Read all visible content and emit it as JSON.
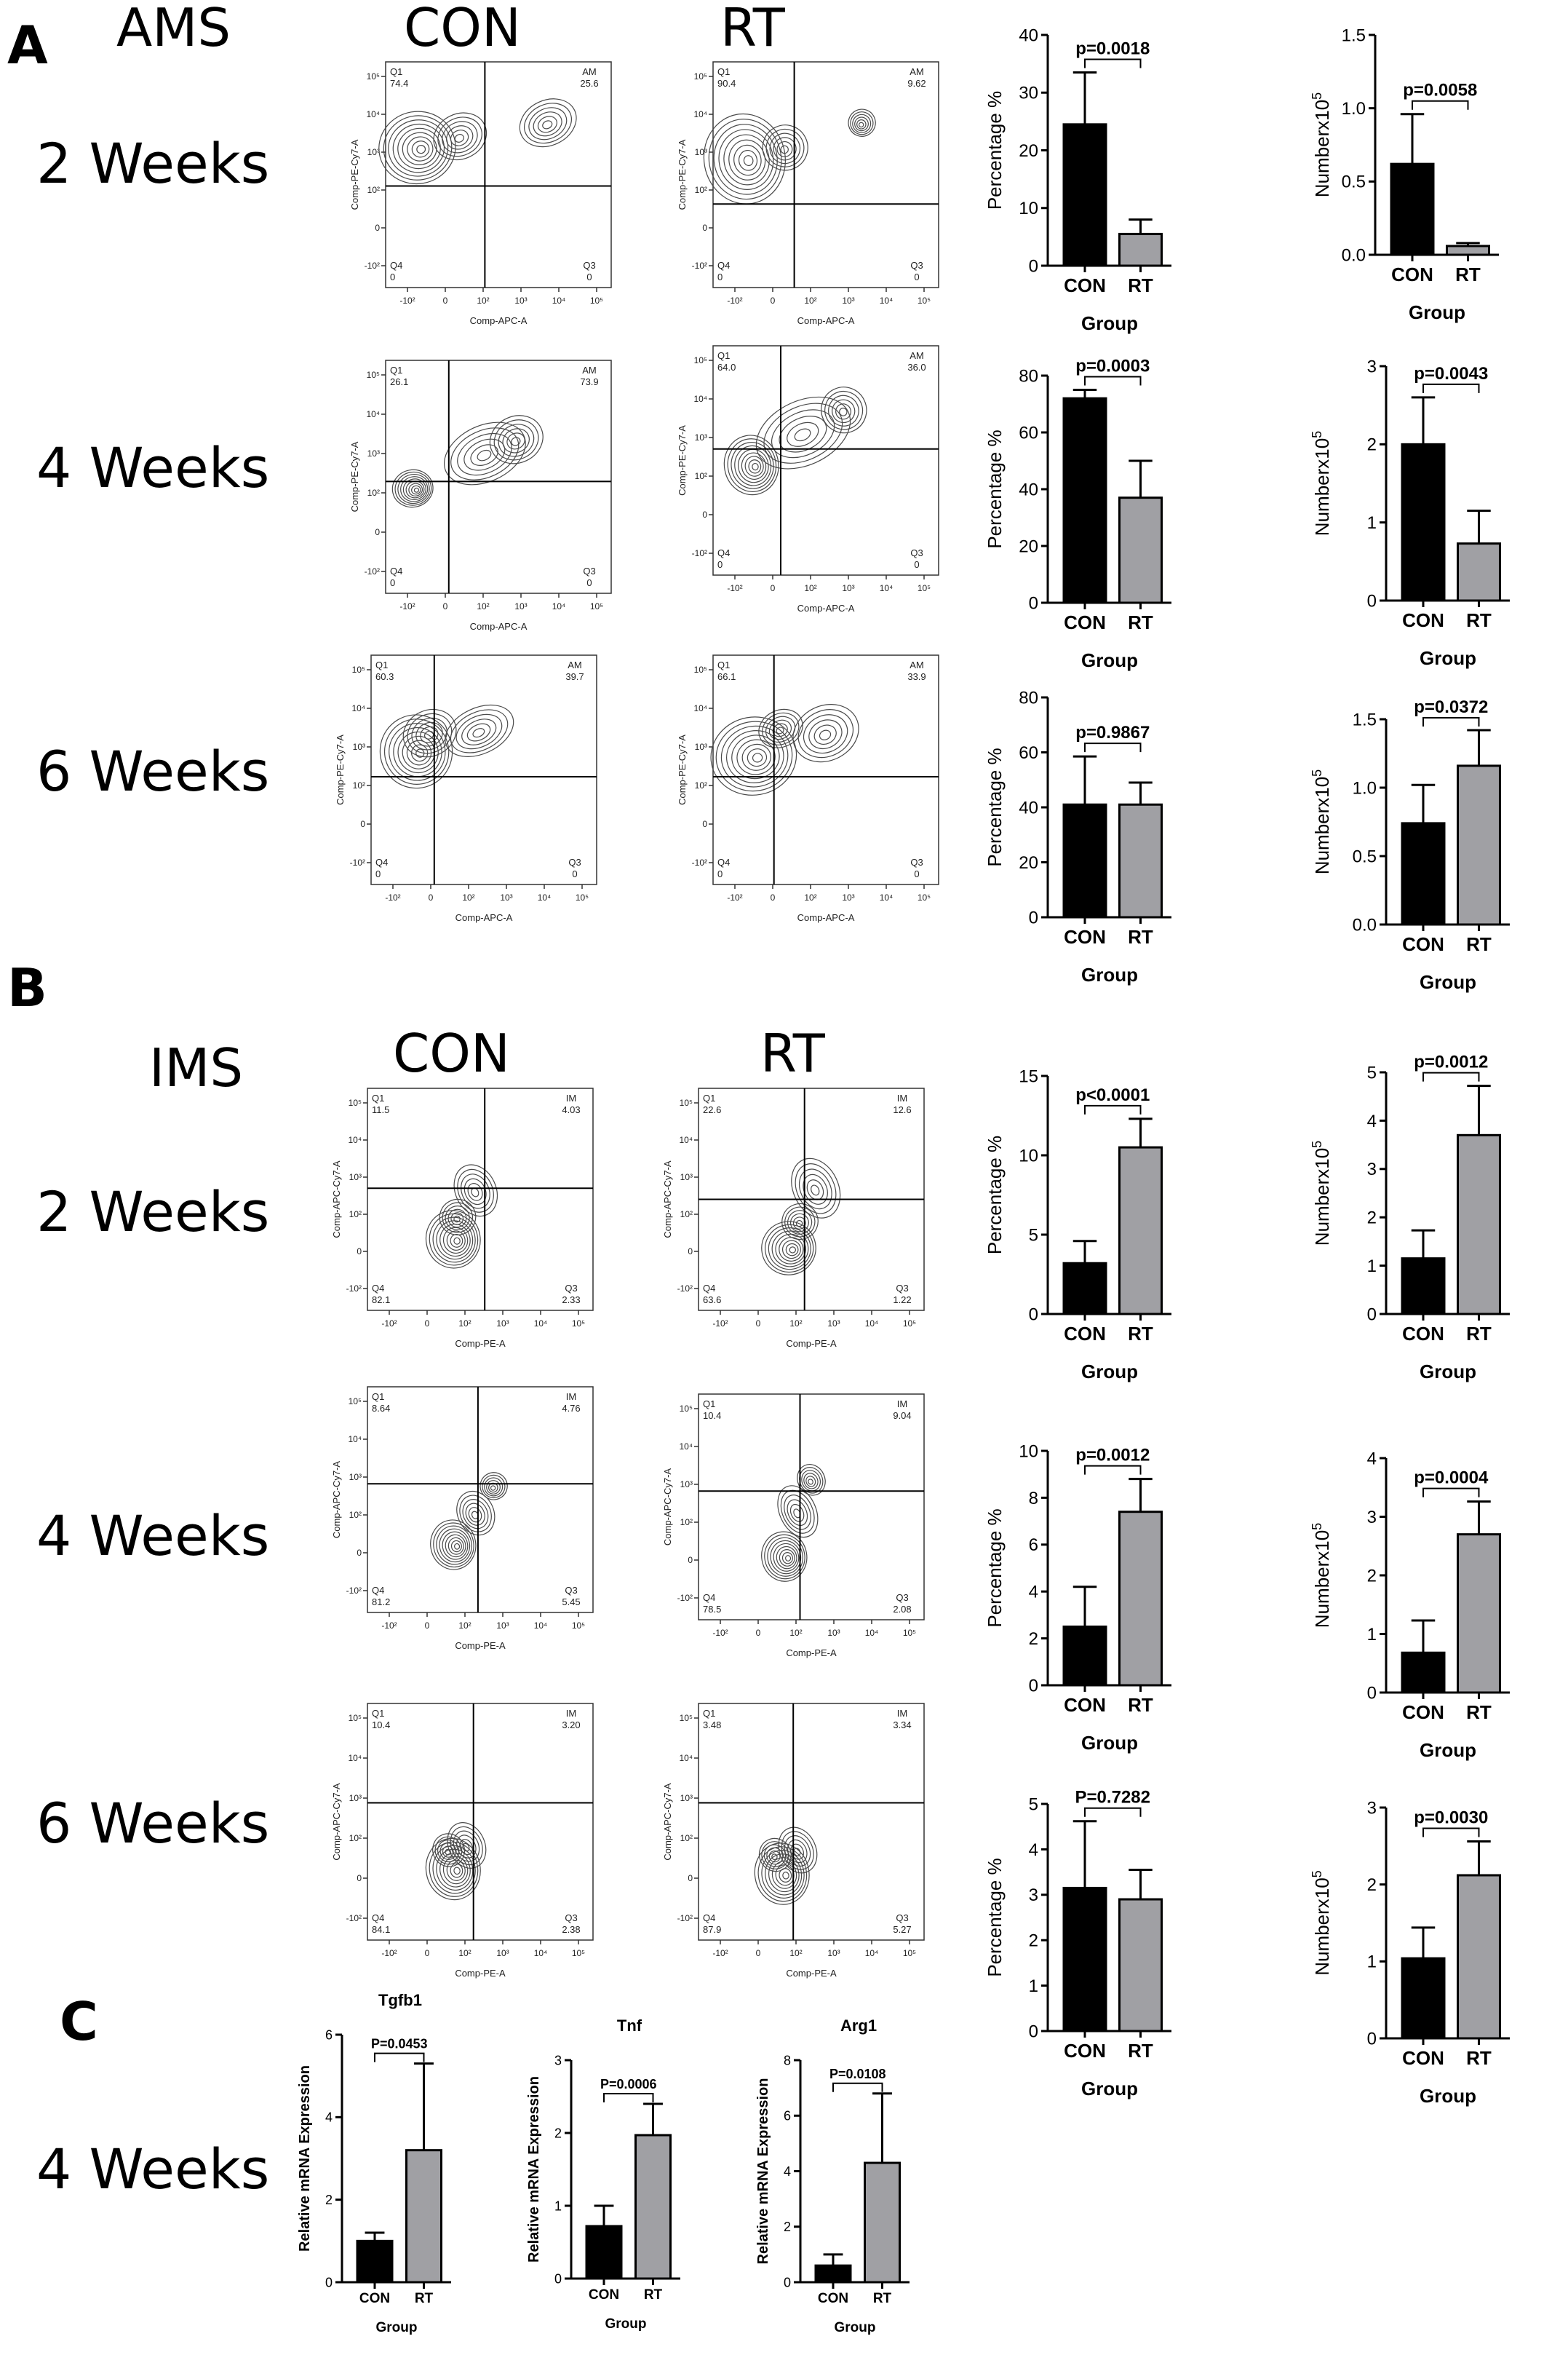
{
  "panels": {
    "a": "A",
    "b": "B",
    "c": "C"
  },
  "headers": {
    "ams": "AMS",
    "ims": "IMS",
    "con": "CON",
    "rt": "RT"
  },
  "rows": {
    "w2": "2 Weeks",
    "w4": "4 Weeks",
    "w6": "6 Weeks"
  },
  "flow_axes": {
    "ams_x": "Comp-APC-A",
    "ams_y": "Comp-PE-Cy7-A",
    "ims_x": "Comp-PE-A",
    "ims_y": "Comp-APC-Cy7-A",
    "ticks": [
      "-10²",
      "0",
      "10²",
      "10³",
      "10⁴",
      "10⁵"
    ]
  },
  "flow_plots": [
    {
      "panel": "AMS",
      "week": "2 Weeks",
      "group": "CON",
      "quadrants": {
        "q1": "Q1",
        "q1_value": "74.4",
        "upper_right": "AM",
        "upper_right_value": "25.6",
        "q4": "Q4",
        "q4_value": "0",
        "q3": "Q3",
        "q3_value": "0"
      }
    },
    {
      "panel": "AMS",
      "week": "2 Weeks",
      "group": "RT",
      "quadrants": {
        "q1": "Q1",
        "q1_value": "90.4",
        "upper_right": "AM",
        "upper_right_value": "9.62",
        "q4": "Q4",
        "q4_value": "0",
        "q3": "Q3",
        "q3_value": "0"
      }
    },
    {
      "panel": "AMS",
      "week": "4 Weeks",
      "group": "CON",
      "quadrants": {
        "q1": "Q1",
        "q1_value": "26.1",
        "upper_right": "AM",
        "upper_right_value": "73.9",
        "q4": "Q4",
        "q4_value": "0",
        "q3": "Q3",
        "q3_value": "0"
      }
    },
    {
      "panel": "AMS",
      "week": "4 Weeks",
      "group": "RT",
      "quadrants": {
        "q1": "Q1",
        "q1_value": "64.0",
        "upper_right": "AM",
        "upper_right_value": "36.0",
        "q4": "Q4",
        "q4_value": "0",
        "q3": "Q3",
        "q3_value": "0"
      }
    },
    {
      "panel": "AMS",
      "week": "6 Weeks",
      "group": "CON",
      "quadrants": {
        "q1": "Q1",
        "q1_value": "60.3",
        "upper_right": "AM",
        "upper_right_value": "39.7",
        "q4": "Q4",
        "q4_value": "0",
        "q3": "Q3",
        "q3_value": "0"
      }
    },
    {
      "panel": "AMS",
      "week": "6 Weeks",
      "group": "RT",
      "quadrants": {
        "q1": "Q1",
        "q1_value": "66.1",
        "upper_right": "AM",
        "upper_right_value": "33.9",
        "q4": "Q4",
        "q4_value": "0",
        "q3": "Q3",
        "q3_value": "0"
      }
    },
    {
      "panel": "IMS",
      "week": "2 Weeks",
      "group": "CON",
      "quadrants": {
        "q1": "Q1",
        "q1_value": "11.5",
        "upper_right": "IM",
        "upper_right_value": "4.03",
        "q4": "Q4",
        "q4_value": "82.1",
        "q3": "Q3",
        "q3_value": "2.33"
      }
    },
    {
      "panel": "IMS",
      "week": "2 Weeks",
      "group": "RT",
      "quadrants": {
        "q1": "Q1",
        "q1_value": "22.6",
        "upper_right": "IM",
        "upper_right_value": "12.6",
        "q4": "Q4",
        "q4_value": "63.6",
        "q3": "Q3",
        "q3_value": "1.22"
      }
    },
    {
      "panel": "IMS",
      "week": "4 Weeks",
      "group": "CON",
      "quadrants": {
        "q1": "Q1",
        "q1_value": "8.64",
        "upper_right": "IM",
        "upper_right_value": "4.76",
        "q4": "Q4",
        "q4_value": "81.2",
        "q3": "Q3",
        "q3_value": "5.45"
      }
    },
    {
      "panel": "IMS",
      "week": "4 Weeks",
      "group": "RT",
      "quadrants": {
        "q1": "Q1",
        "q1_value": "10.4",
        "upper_right": "IM",
        "upper_right_value": "9.04",
        "q4": "Q4",
        "q4_value": "78.5",
        "q3": "Q3",
        "q3_value": "2.08"
      }
    },
    {
      "panel": "IMS",
      "week": "6 Weeks",
      "group": "CON",
      "quadrants": {
        "q1": "Q1",
        "q1_value": "10.4",
        "upper_right": "IM",
        "upper_right_value": "3.20",
        "q4": "Q4",
        "q4_value": "84.1",
        "q3": "Q3",
        "q3_value": "2.38"
      }
    },
    {
      "panel": "IMS",
      "week": "6 Weeks",
      "group": "RT",
      "quadrants": {
        "q1": "Q1",
        "q1_value": "3.48",
        "upper_right": "IM",
        "upper_right_value": "3.34",
        "q4": "Q4",
        "q4_value": "87.9",
        "q3": "Q3",
        "q3_value": "5.27"
      }
    }
  ],
  "colors": {
    "con": "#000000",
    "rt": "#a0a0a4",
    "contour": "#4a4a4a"
  },
  "chart_data": [
    {
      "type": "bar",
      "panel": "AMS",
      "week": "2 Weeks",
      "title": "",
      "categories": [
        "CON",
        "RT"
      ],
      "values": [
        24.5,
        5.5
      ],
      "errors": [
        9.0,
        2.5
      ],
      "ylim": [
        0,
        40
      ],
      "yticks": [
        "0",
        "10",
        "20",
        "30",
        "40"
      ],
      "ylabel": "Percentage %",
      "xlabel": "Group",
      "pvalue": "p=0.0018"
    },
    {
      "type": "bar",
      "panel": "AMS",
      "week": "2 Weeks",
      "title": "",
      "categories": [
        "CON",
        "RT"
      ],
      "values": [
        0.62,
        0.06
      ],
      "errors": [
        0.34,
        0.02
      ],
      "ylim": [
        0,
        1.5
      ],
      "yticks": [
        "0.0",
        "0.5",
        "1.0",
        "1.5"
      ],
      "ylabel": "Numberx10",
      "ylabel_sup": "5",
      "xlabel": "Group",
      "pvalue": "p=0.0058"
    },
    {
      "type": "bar",
      "panel": "AMS",
      "week": "4 Weeks",
      "title": "",
      "categories": [
        "CON",
        "RT"
      ],
      "values": [
        72,
        37
      ],
      "errors": [
        3,
        13
      ],
      "ylim": [
        0,
        80
      ],
      "yticks": [
        "0",
        "20",
        "40",
        "60",
        "80"
      ],
      "ylabel": "Percentage %",
      "xlabel": "Group",
      "pvalue": "p=0.0003"
    },
    {
      "type": "bar",
      "panel": "AMS",
      "week": "4 Weeks",
      "title": "",
      "categories": [
        "CON",
        "RT"
      ],
      "values": [
        2.0,
        0.73
      ],
      "errors": [
        0.6,
        0.42
      ],
      "ylim": [
        0,
        3
      ],
      "yticks": [
        "0",
        "1",
        "2",
        "3"
      ],
      "ylabel": "Numberx10",
      "ylabel_sup": "5",
      "xlabel": "Group",
      "pvalue": "p=0.0043"
    },
    {
      "type": "bar",
      "panel": "AMS",
      "week": "6 Weeks",
      "title": "",
      "categories": [
        "CON",
        "RT"
      ],
      "values": [
        41,
        41
      ],
      "errors": [
        17.5,
        8
      ],
      "ylim": [
        0,
        80
      ],
      "yticks": [
        "0",
        "20",
        "40",
        "60",
        "80"
      ],
      "ylabel": "Percentage %",
      "xlabel": "Group",
      "pvalue": "p=0.9867"
    },
    {
      "type": "bar",
      "panel": "AMS",
      "week": "6 Weeks",
      "title": "",
      "categories": [
        "CON",
        "RT"
      ],
      "values": [
        0.74,
        1.16
      ],
      "errors": [
        0.28,
        0.26
      ],
      "ylim": [
        0,
        1.5
      ],
      "yticks": [
        "0.0",
        "0.5",
        "1.0",
        "1.5"
      ],
      "ylabel": "Numberx10",
      "ylabel_sup": "5",
      "xlabel": "Group",
      "pvalue": "p=0.0372"
    },
    {
      "type": "bar",
      "panel": "IMS",
      "week": "2 Weeks",
      "title": "",
      "categories": [
        "CON",
        "RT"
      ],
      "values": [
        3.2,
        10.5
      ],
      "errors": [
        1.4,
        1.8
      ],
      "ylim": [
        0,
        15
      ],
      "yticks": [
        "0",
        "5",
        "10",
        "15"
      ],
      "ylabel": "Percentage %",
      "xlabel": "Group",
      "pvalue": "p<0.0001"
    },
    {
      "type": "bar",
      "panel": "IMS",
      "week": "2 Weeks",
      "title": "",
      "categories": [
        "CON",
        "RT"
      ],
      "values": [
        1.15,
        3.7
      ],
      "errors": [
        0.58,
        1.02
      ],
      "ylim": [
        0,
        5
      ],
      "yticks": [
        "0",
        "1",
        "2",
        "3",
        "4",
        "5"
      ],
      "ylabel": "Numberx10",
      "ylabel_sup": "5",
      "xlabel": "Group",
      "pvalue": "p=0.0012"
    },
    {
      "type": "bar",
      "panel": "IMS",
      "week": "4 Weeks",
      "title": "",
      "categories": [
        "CON",
        "RT"
      ],
      "values": [
        2.5,
        7.4
      ],
      "errors": [
        1.7,
        1.4
      ],
      "ylim": [
        0,
        10
      ],
      "yticks": [
        "0",
        "2",
        "4",
        "6",
        "8",
        "10"
      ],
      "ylabel": "Percentage %",
      "xlabel": "Group",
      "pvalue": "p=0.0012"
    },
    {
      "type": "bar",
      "panel": "IMS",
      "week": "4 Weeks",
      "title": "",
      "categories": [
        "CON",
        "RT"
      ],
      "values": [
        0.68,
        2.7
      ],
      "errors": [
        0.55,
        0.56
      ],
      "ylim": [
        0,
        4
      ],
      "yticks": [
        "0",
        "1",
        "2",
        "3",
        "4"
      ],
      "ylabel": "Numberx10",
      "ylabel_sup": "5",
      "xlabel": "Group",
      "pvalue": "p=0.0004"
    },
    {
      "type": "bar",
      "panel": "IMS",
      "week": "6 Weeks",
      "title": "",
      "categories": [
        "CON",
        "RT"
      ],
      "values": [
        3.15,
        2.9
      ],
      "errors": [
        1.47,
        0.65
      ],
      "ylim": [
        0,
        5
      ],
      "yticks": [
        "0",
        "1",
        "2",
        "3",
        "4",
        "5"
      ],
      "ylabel": "Percentage %",
      "xlabel": "Group",
      "pvalue": "P=0.7282"
    },
    {
      "type": "bar",
      "panel": "IMS",
      "week": "6 Weeks",
      "title": "",
      "categories": [
        "CON",
        "RT"
      ],
      "values": [
        1.04,
        2.12
      ],
      "errors": [
        0.4,
        0.44
      ],
      "ylim": [
        0,
        3
      ],
      "yticks": [
        "0",
        "1",
        "2",
        "3"
      ],
      "ylabel": "Numberx10",
      "ylabel_sup": "5",
      "xlabel": "Group",
      "pvalue": "p=0.0030"
    },
    {
      "type": "bar",
      "panel": "C",
      "week": "4 Weeks",
      "title": "Tgfb1",
      "categories": [
        "CON",
        "RT"
      ],
      "values": [
        1.0,
        3.2
      ],
      "errors": [
        0.2,
        2.1
      ],
      "ylim": [
        0,
        6
      ],
      "yticks": [
        "0",
        "2",
        "4",
        "6"
      ],
      "ylabel": "Relative mRNA Expression",
      "xlabel": "Group",
      "pvalue": "P=0.0453"
    },
    {
      "type": "bar",
      "panel": "C",
      "week": "4 Weeks",
      "title": "Tnf",
      "categories": [
        "CON",
        "RT"
      ],
      "values": [
        0.72,
        1.97
      ],
      "errors": [
        0.28,
        0.43
      ],
      "ylim": [
        0,
        3
      ],
      "yticks": [
        "0",
        "1",
        "2",
        "3"
      ],
      "ylabel": "Relative mRNA Expression",
      "xlabel": "Group",
      "pvalue": "P=0.0006"
    },
    {
      "type": "bar",
      "panel": "C",
      "week": "4 Weeks",
      "title": "Arg1",
      "categories": [
        "CON",
        "RT"
      ],
      "values": [
        0.6,
        4.3
      ],
      "errors": [
        0.4,
        2.5
      ],
      "ylim": [
        0,
        8
      ],
      "yticks": [
        "0",
        "2",
        "4",
        "6",
        "8"
      ],
      "ylabel": "Relative mRNA Expression",
      "xlabel": "Group",
      "pvalue": "P=0.0108"
    }
  ]
}
